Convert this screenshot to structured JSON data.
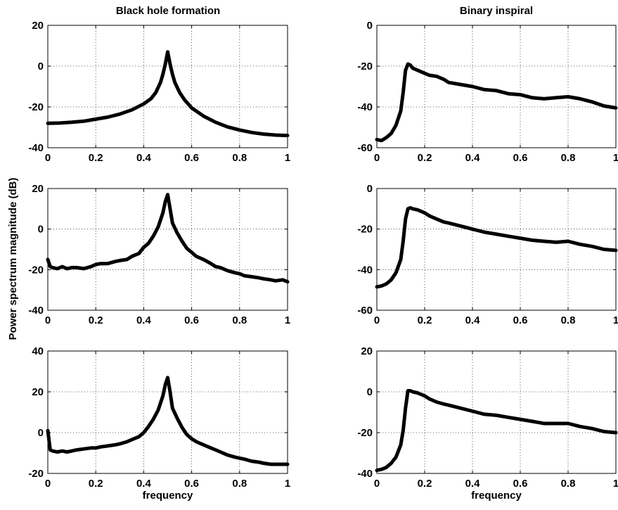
{
  "figure": {
    "ylabel": "Power spectrum magnitude (dB)",
    "xlabel": "frequency",
    "col_titles": [
      "Black hole formation",
      "Binary inspiral"
    ]
  },
  "chart_data": [
    {
      "type": "line",
      "row": 0,
      "col": 0,
      "title": "Black hole formation",
      "xlabel": "",
      "xlim": [
        0,
        1
      ],
      "ylim": [
        -40,
        20
      ],
      "xticks": [
        0,
        0.2,
        0.4,
        0.6,
        0.8,
        1
      ],
      "yticks": [
        -40,
        -20,
        0,
        20
      ],
      "grid": true,
      "series": [
        {
          "x": [
            0,
            0.05,
            0.1,
            0.15,
            0.2,
            0.25,
            0.3,
            0.35,
            0.4,
            0.43,
            0.45,
            0.47,
            0.48,
            0.49,
            0.5,
            0.51,
            0.52,
            0.53,
            0.55,
            0.57,
            0.6,
            0.65,
            0.7,
            0.75,
            0.8,
            0.85,
            0.9,
            0.95,
            1
          ],
          "y": [
            -28,
            -27.9,
            -27.5,
            -27,
            -26,
            -25,
            -23.5,
            -21.5,
            -18.5,
            -16,
            -13,
            -8,
            -4,
            1,
            7,
            1,
            -4,
            -8,
            -13,
            -16.5,
            -20.5,
            -24.5,
            -27.5,
            -29.8,
            -31.3,
            -32.5,
            -33.3,
            -33.8,
            -34
          ]
        }
      ]
    },
    {
      "type": "line",
      "row": 0,
      "col": 1,
      "title": "Binary inspiral",
      "xlabel": "",
      "xlim": [
        0,
        1
      ],
      "ylim": [
        -60,
        0
      ],
      "xticks": [
        0,
        0.2,
        0.4,
        0.6,
        0.8,
        1
      ],
      "yticks": [
        -60,
        -40,
        -20,
        0
      ],
      "grid": true,
      "series": [
        {
          "x": [
            0,
            0.02,
            0.04,
            0.06,
            0.08,
            0.1,
            0.11,
            0.12,
            0.13,
            0.14,
            0.15,
            0.17,
            0.2,
            0.22,
            0.25,
            0.28,
            0.3,
            0.35,
            0.4,
            0.45,
            0.5,
            0.55,
            0.6,
            0.65,
            0.7,
            0.75,
            0.8,
            0.85,
            0.9,
            0.95,
            1
          ],
          "y": [
            -56,
            -56.5,
            -55,
            -53,
            -49,
            -42,
            -33,
            -22,
            -19,
            -19.5,
            -21,
            -22,
            -23.5,
            -24.5,
            -25,
            -26.5,
            -28,
            -29,
            -30,
            -31.5,
            -32,
            -33.5,
            -34,
            -35.5,
            -36,
            -35.5,
            -35,
            -36,
            -37.5,
            -39.5,
            -40.5
          ]
        }
      ]
    },
    {
      "type": "line",
      "row": 1,
      "col": 0,
      "title": "",
      "xlabel": "",
      "xlim": [
        0,
        1
      ],
      "ylim": [
        -40,
        20
      ],
      "xticks": [
        0,
        0.2,
        0.4,
        0.6,
        0.8,
        1
      ],
      "yticks": [
        -40,
        -20,
        0,
        20
      ],
      "grid": true,
      "series": [
        {
          "x": [
            0,
            0.01,
            0.02,
            0.04,
            0.06,
            0.08,
            0.1,
            0.12,
            0.15,
            0.18,
            0.2,
            0.22,
            0.25,
            0.28,
            0.3,
            0.33,
            0.35,
            0.38,
            0.4,
            0.42,
            0.44,
            0.46,
            0.48,
            0.49,
            0.5,
            0.51,
            0.52,
            0.54,
            0.56,
            0.58,
            0.6,
            0.62,
            0.65,
            0.68,
            0.7,
            0.72,
            0.75,
            0.78,
            0.8,
            0.82,
            0.85,
            0.88,
            0.9,
            0.93,
            0.95,
            0.98,
            1
          ],
          "y": [
            -15,
            -18.5,
            -19,
            -19.5,
            -18.5,
            -19.5,
            -19,
            -19,
            -19.5,
            -18.5,
            -17.5,
            -17,
            -17,
            -16,
            -15.5,
            -15,
            -13.5,
            -12,
            -9,
            -7,
            -3.5,
            1,
            8,
            13.5,
            17,
            10,
            3,
            -2,
            -6,
            -9.5,
            -11.5,
            -13.5,
            -15,
            -17,
            -18.5,
            -19,
            -20.5,
            -21.5,
            -22,
            -23,
            -23.5,
            -24,
            -24.5,
            -25,
            -25.5,
            -25,
            -26
          ]
        }
      ]
    },
    {
      "type": "line",
      "row": 1,
      "col": 1,
      "title": "",
      "xlabel": "",
      "xlim": [
        0,
        1
      ],
      "ylim": [
        -60,
        0
      ],
      "xticks": [
        0,
        0.2,
        0.4,
        0.6,
        0.8,
        1
      ],
      "yticks": [
        -60,
        -40,
        -20,
        0
      ],
      "grid": true,
      "series": [
        {
          "x": [
            0,
            0.02,
            0.04,
            0.06,
            0.08,
            0.1,
            0.11,
            0.12,
            0.13,
            0.14,
            0.15,
            0.17,
            0.2,
            0.22,
            0.25,
            0.28,
            0.3,
            0.35,
            0.4,
            0.45,
            0.5,
            0.55,
            0.6,
            0.65,
            0.7,
            0.75,
            0.8,
            0.85,
            0.9,
            0.95,
            1
          ],
          "y": [
            -48.5,
            -48,
            -47,
            -45,
            -41.5,
            -35,
            -26,
            -15,
            -10,
            -9.5,
            -10,
            -10.5,
            -12,
            -13.5,
            -15,
            -16.5,
            -17,
            -18.5,
            -20,
            -21.5,
            -22.5,
            -23.5,
            -24.5,
            -25.5,
            -26,
            -26.5,
            -26,
            -27.5,
            -28.5,
            -30,
            -30.5
          ]
        }
      ]
    },
    {
      "type": "line",
      "row": 2,
      "col": 0,
      "title": "",
      "xlabel": "frequency",
      "xlim": [
        0,
        1
      ],
      "ylim": [
        -20,
        40
      ],
      "xticks": [
        0,
        0.2,
        0.4,
        0.6,
        0.8,
        1
      ],
      "yticks": [
        -20,
        0,
        20,
        40
      ],
      "grid": true,
      "series": [
        {
          "x": [
            0,
            0.01,
            0.02,
            0.04,
            0.06,
            0.08,
            0.1,
            0.12,
            0.15,
            0.18,
            0.2,
            0.22,
            0.25,
            0.28,
            0.3,
            0.33,
            0.35,
            0.38,
            0.4,
            0.42,
            0.44,
            0.46,
            0.48,
            0.49,
            0.5,
            0.51,
            0.52,
            0.54,
            0.56,
            0.58,
            0.6,
            0.62,
            0.65,
            0.68,
            0.7,
            0.72,
            0.75,
            0.78,
            0.8,
            0.82,
            0.85,
            0.88,
            0.9,
            0.93,
            0.95,
            0.98,
            1
          ],
          "y": [
            1,
            -8.5,
            -9,
            -9.5,
            -9,
            -9.5,
            -9,
            -8.5,
            -8,
            -7.5,
            -7.5,
            -7,
            -6.5,
            -6,
            -5.5,
            -4.5,
            -3.5,
            -2,
            0,
            3,
            6.5,
            11,
            18,
            23.5,
            27,
            20,
            12,
            7,
            2.5,
            -1,
            -3,
            -4.5,
            -6,
            -7.5,
            -8.5,
            -9.5,
            -11,
            -12,
            -12.5,
            -13,
            -14,
            -14.5,
            -15,
            -15.5,
            -15.5,
            -15.5,
            -15.5
          ]
        }
      ]
    },
    {
      "type": "line",
      "row": 2,
      "col": 1,
      "title": "",
      "xlabel": "frequency",
      "xlim": [
        0,
        1
      ],
      "ylim": [
        -40,
        20
      ],
      "xticks": [
        0,
        0.2,
        0.4,
        0.6,
        0.8,
        1
      ],
      "yticks": [
        -40,
        -20,
        0,
        20
      ],
      "grid": true,
      "series": [
        {
          "x": [
            0,
            0.02,
            0.04,
            0.06,
            0.08,
            0.1,
            0.11,
            0.12,
            0.13,
            0.14,
            0.15,
            0.17,
            0.2,
            0.22,
            0.25,
            0.28,
            0.3,
            0.35,
            0.4,
            0.45,
            0.5,
            0.55,
            0.6,
            0.65,
            0.7,
            0.75,
            0.8,
            0.85,
            0.9,
            0.95,
            1
          ],
          "y": [
            -38.5,
            -38,
            -37,
            -35,
            -32,
            -26,
            -19,
            -8,
            0.5,
            0.5,
            0,
            -0.5,
            -2,
            -3.5,
            -5,
            -6,
            -6.5,
            -8,
            -9.5,
            -11,
            -11.5,
            -12.5,
            -13.5,
            -14.5,
            -15.5,
            -15.5,
            -15.5,
            -17,
            -18,
            -19.5,
            -20
          ]
        }
      ]
    }
  ]
}
